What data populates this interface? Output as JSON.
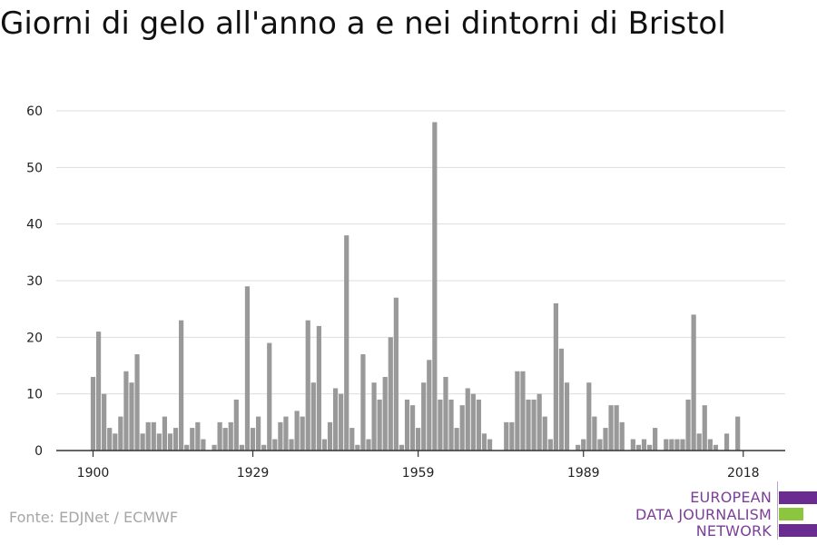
{
  "title": "Giorni di gelo all'anno a e nei dintorni di Bristol",
  "source": "Fonte: EDJNet / ECMWF",
  "logo": {
    "lines": [
      "EUROPEAN",
      "DATA JOURNALISM",
      "NETWORK"
    ],
    "colors": {
      "purple": "#6a2c91",
      "green": "#8cc63f"
    }
  },
  "chart_data": {
    "type": "bar",
    "title": "Giorni di gelo all'anno a e nei dintorni di Bristol",
    "xlabel": "",
    "ylabel": "",
    "ylim": [
      0,
      60
    ],
    "yticks": [
      0,
      10,
      20,
      30,
      40,
      50,
      60
    ],
    "xticks": [
      1900,
      1929,
      1959,
      1989,
      2018
    ],
    "bar_color": "#999999",
    "grid": true,
    "x": [
      1900,
      1901,
      1902,
      1903,
      1904,
      1905,
      1906,
      1907,
      1908,
      1909,
      1910,
      1911,
      1912,
      1913,
      1914,
      1915,
      1916,
      1917,
      1918,
      1919,
      1920,
      1921,
      1922,
      1923,
      1924,
      1925,
      1926,
      1927,
      1928,
      1929,
      1930,
      1931,
      1932,
      1933,
      1934,
      1935,
      1936,
      1937,
      1938,
      1939,
      1940,
      1941,
      1942,
      1943,
      1944,
      1945,
      1946,
      1947,
      1948,
      1949,
      1950,
      1951,
      1952,
      1953,
      1954,
      1955,
      1956,
      1957,
      1958,
      1959,
      1960,
      1961,
      1962,
      1963,
      1964,
      1965,
      1966,
      1967,
      1968,
      1969,
      1970,
      1971,
      1972,
      1973,
      1974,
      1975,
      1976,
      1977,
      1978,
      1979,
      1980,
      1981,
      1982,
      1983,
      1984,
      1985,
      1986,
      1987,
      1988,
      1989,
      1990,
      1991,
      1992,
      1993,
      1994,
      1995,
      1996,
      1997,
      1998,
      1999,
      2000,
      2001,
      2002,
      2003,
      2004,
      2005,
      2006,
      2007,
      2008,
      2009,
      2010,
      2011,
      2012,
      2013,
      2014,
      2015,
      2016,
      2017,
      2018,
      2019
    ],
    "values": [
      13,
      21,
      10,
      4,
      3,
      6,
      14,
      12,
      17,
      3,
      5,
      5,
      3,
      6,
      3,
      4,
      23,
      1,
      4,
      5,
      2,
      0,
      1,
      5,
      4,
      5,
      9,
      1,
      29,
      4,
      6,
      1,
      19,
      2,
      5,
      6,
      2,
      7,
      6,
      23,
      12,
      22,
      2,
      5,
      11,
      10,
      38,
      4,
      1,
      17,
      2,
      12,
      9,
      13,
      20,
      27,
      1,
      9,
      8,
      4,
      12,
      16,
      58,
      9,
      13,
      9,
      4,
      8,
      11,
      10,
      9,
      3,
      2,
      0,
      0,
      5,
      5,
      14,
      14,
      9,
      9,
      10,
      6,
      2,
      26,
      18,
      12,
      0,
      1,
      2,
      12,
      6,
      2,
      4,
      8,
      8,
      5,
      0,
      2,
      1,
      2,
      1,
      4,
      0,
      2,
      2,
      2,
      2,
      9,
      24,
      3,
      8,
      2,
      1,
      0,
      3,
      0,
      6,
      0,
      0
    ]
  }
}
